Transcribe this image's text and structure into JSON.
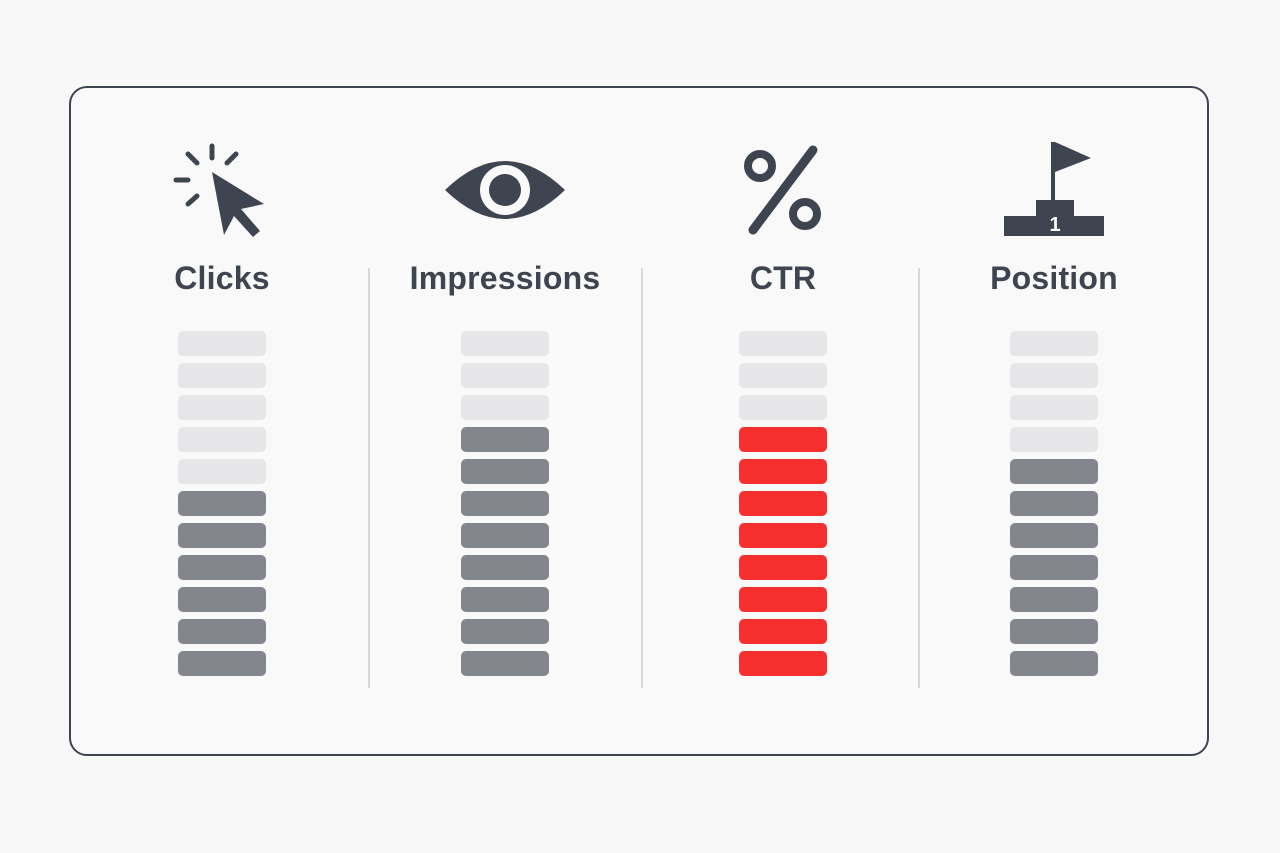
{
  "colors": {
    "empty_segment": "#e6e6e8",
    "filled_segment": "#83868d",
    "highlight_segment": "#f62f2f",
    "text": "#3f4550"
  },
  "segments_per_meter": 11,
  "metrics": [
    {
      "label": "Clicks",
      "icon": "cursor-click-icon",
      "filled_segments": 6,
      "highlight": false
    },
    {
      "label": "Impressions",
      "icon": "eye-icon",
      "filled_segments": 8,
      "highlight": false
    },
    {
      "label": "CTR",
      "icon": "percent-icon",
      "filled_segments": 8,
      "highlight": true
    },
    {
      "label": "Position",
      "icon": "podium-flag-icon",
      "filled_segments": 7,
      "highlight": false
    }
  ]
}
